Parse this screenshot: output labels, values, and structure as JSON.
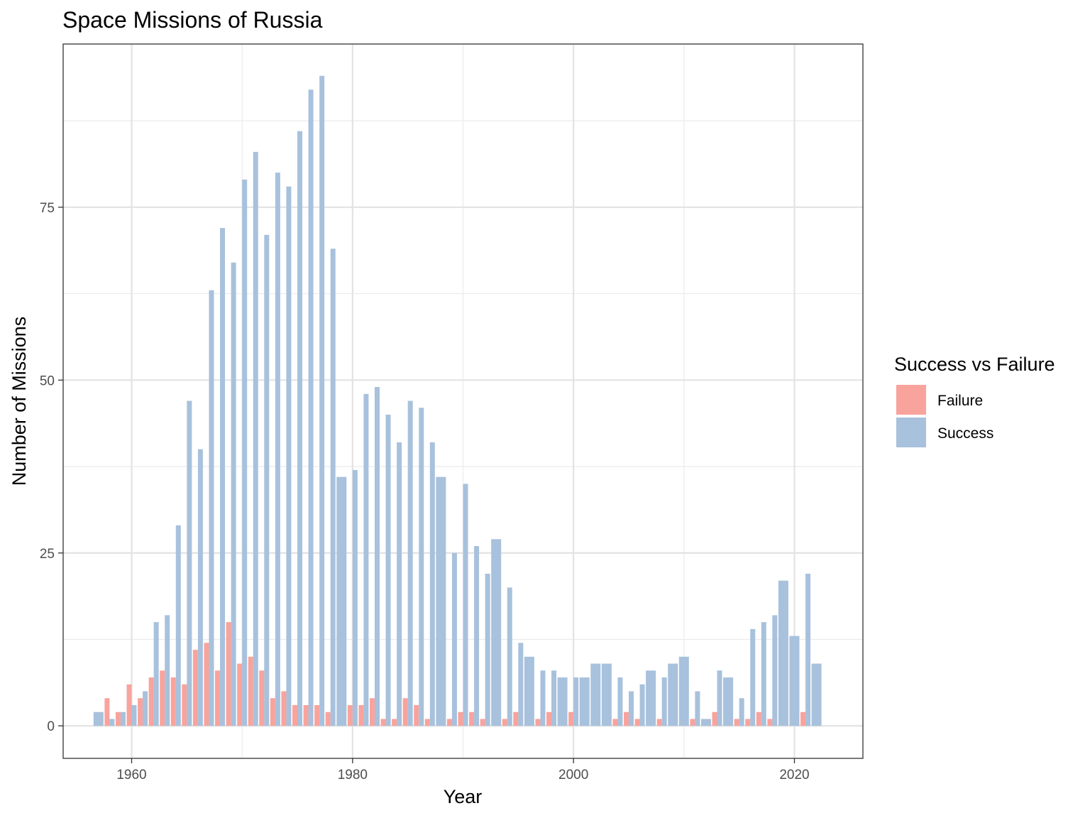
{
  "chart_data": {
    "type": "bar",
    "title": "Space Missions of Russia",
    "xlabel": "Year",
    "ylabel": "Number of Missions",
    "xlim": [
      1953.8,
      2026.2
    ],
    "ylim": [
      -4.7,
      98.6
    ],
    "xticks": [
      1960,
      1980,
      2000,
      2020
    ],
    "xtick_labels": [
      "1960",
      "1980",
      "2000",
      "2020"
    ],
    "yticks": [
      0,
      25,
      50,
      75
    ],
    "ytick_labels": [
      "0",
      "25",
      "50",
      "75"
    ],
    "grid": true,
    "legend": {
      "title": "Success vs Failure",
      "placement": "right",
      "entries": [
        "Failure",
        "Success"
      ]
    },
    "series": [
      {
        "name": "Failure",
        "color": "#f8a39c",
        "points": [
          [
            1958,
            4
          ],
          [
            1959,
            2
          ],
          [
            1960,
            6
          ],
          [
            1961,
            4
          ],
          [
            1962,
            7
          ],
          [
            1963,
            8
          ],
          [
            1964,
            7
          ],
          [
            1965,
            6
          ],
          [
            1966,
            11
          ],
          [
            1967,
            12
          ],
          [
            1968,
            8
          ],
          [
            1969,
            15
          ],
          [
            1970,
            9
          ],
          [
            1971,
            10
          ],
          [
            1972,
            8
          ],
          [
            1973,
            4
          ],
          [
            1974,
            5
          ],
          [
            1975,
            3
          ],
          [
            1976,
            3
          ],
          [
            1977,
            3
          ],
          [
            1978,
            2
          ],
          [
            1980,
            3
          ],
          [
            1981,
            3
          ],
          [
            1982,
            4
          ],
          [
            1983,
            1
          ],
          [
            1984,
            1
          ],
          [
            1985,
            4
          ],
          [
            1986,
            3
          ],
          [
            1987,
            1
          ],
          [
            1989,
            1
          ],
          [
            1990,
            2
          ],
          [
            1991,
            2
          ],
          [
            1992,
            1
          ],
          [
            1994,
            1
          ],
          [
            1995,
            2
          ],
          [
            1997,
            1
          ],
          [
            1998,
            2
          ],
          [
            2000,
            2
          ],
          [
            2004,
            1
          ],
          [
            2005,
            2
          ],
          [
            2006,
            1
          ],
          [
            2008,
            1
          ],
          [
            2011,
            1
          ],
          [
            2013,
            2
          ],
          [
            2015,
            1
          ],
          [
            2016,
            1
          ],
          [
            2017,
            2
          ],
          [
            2018,
            1
          ],
          [
            2021,
            2
          ]
        ]
      },
      {
        "name": "Success",
        "color": "#a8c1dc",
        "points": [
          [
            1957,
            2
          ],
          [
            1958,
            1
          ],
          [
            1959,
            2
          ],
          [
            1960,
            3
          ],
          [
            1961,
            5
          ],
          [
            1962,
            15
          ],
          [
            1963,
            16
          ],
          [
            1964,
            29
          ],
          [
            1965,
            47
          ],
          [
            1966,
            40
          ],
          [
            1967,
            63
          ],
          [
            1968,
            72
          ],
          [
            1969,
            67
          ],
          [
            1970,
            79
          ],
          [
            1971,
            83
          ],
          [
            1972,
            71
          ],
          [
            1973,
            80
          ],
          [
            1974,
            78
          ],
          [
            1975,
            86
          ],
          [
            1976,
            92
          ],
          [
            1977,
            94
          ],
          [
            1978,
            69
          ],
          [
            1979,
            36
          ],
          [
            1980,
            37
          ],
          [
            1981,
            48
          ],
          [
            1982,
            49
          ],
          [
            1983,
            45
          ],
          [
            1984,
            41
          ],
          [
            1985,
            47
          ],
          [
            1986,
            46
          ],
          [
            1987,
            41
          ],
          [
            1988,
            36
          ],
          [
            1989,
            25
          ],
          [
            1990,
            35
          ],
          [
            1991,
            26
          ],
          [
            1992,
            22
          ],
          [
            1993,
            27
          ],
          [
            1994,
            20
          ],
          [
            1995,
            12
          ],
          [
            1996,
            10
          ],
          [
            1997,
            8
          ],
          [
            1998,
            8
          ],
          [
            1999,
            7
          ],
          [
            2000,
            7
          ],
          [
            2001,
            7
          ],
          [
            2002,
            9
          ],
          [
            2003,
            9
          ],
          [
            2004,
            7
          ],
          [
            2005,
            5
          ],
          [
            2006,
            6
          ],
          [
            2007,
            8
          ],
          [
            2008,
            7
          ],
          [
            2009,
            9
          ],
          [
            2010,
            10
          ],
          [
            2011,
            5
          ],
          [
            2012,
            1
          ],
          [
            2013,
            8
          ],
          [
            2014,
            7
          ],
          [
            2015,
            4
          ],
          [
            2016,
            14
          ],
          [
            2017,
            15
          ],
          [
            2018,
            16
          ],
          [
            2019,
            21
          ],
          [
            2020,
            13
          ],
          [
            2021,
            22
          ],
          [
            2022,
            9
          ]
        ]
      }
    ]
  }
}
